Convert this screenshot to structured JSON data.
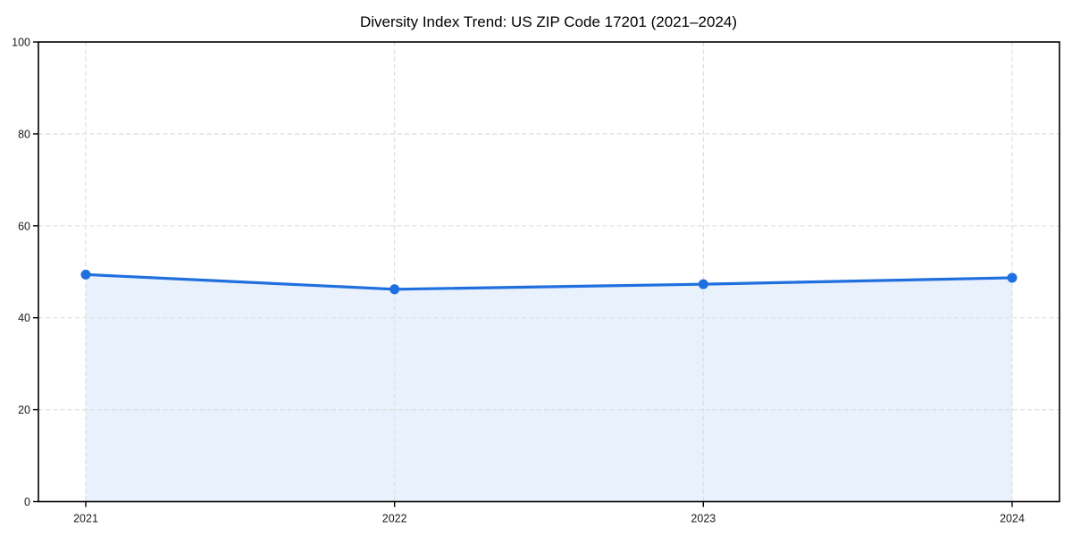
{
  "page": {
    "background": "#ffffff"
  },
  "chart_data": {
    "type": "area",
    "title": "Diversity Index Trend: US ZIP Code 17201 (2021–2024)",
    "x": [
      2021,
      2022,
      2023,
      2024
    ],
    "xticklabels": [
      "2021",
      "2022",
      "2023",
      "2024"
    ],
    "values": [
      49.4,
      46.2,
      47.3,
      48.7
    ],
    "series_name": "Diversity Index",
    "xlabel": "",
    "ylabel": "",
    "ylim": [
      0,
      100
    ],
    "yticks": [
      0,
      20,
      40,
      60,
      80,
      100
    ],
    "grid": "dashed, horizontal and vertical",
    "legend_position": "none",
    "colors": {
      "line": "#1f6fdf",
      "marker": "#1f6fdf",
      "area_fill": "#e9f1fc",
      "gridline": "#dedede",
      "spine": "#000000",
      "tick_label": "#1a1a1a",
      "title": "#000000",
      "background": "#ffffff"
    }
  }
}
